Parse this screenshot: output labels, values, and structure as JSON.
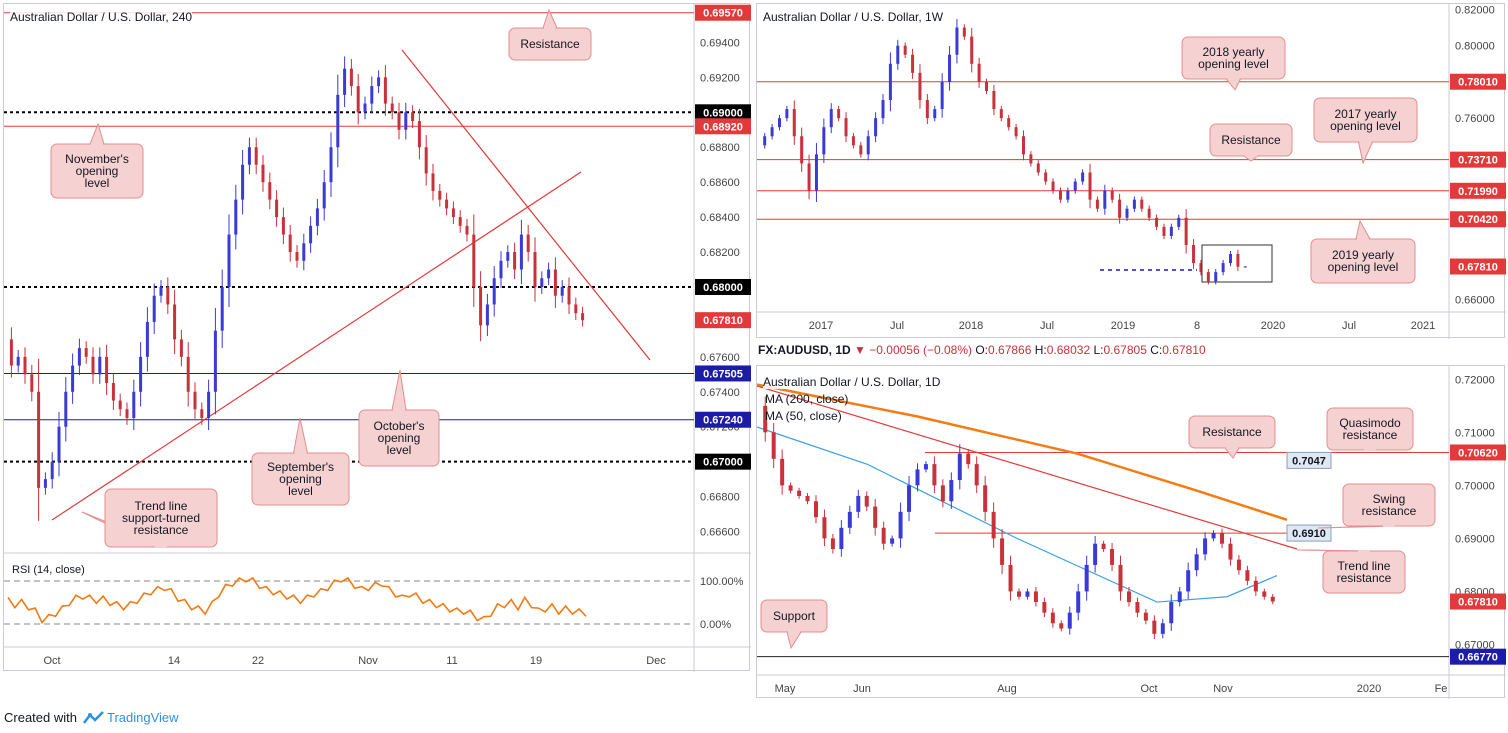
{
  "footer": {
    "created_with": "Created with",
    "brand": "TradingView",
    "logo_icon": "tradingview-logo-icon"
  },
  "colors": {
    "up": "#3a3ad6",
    "down": "#c8323a",
    "line_red": "#e23a3a",
    "level_blue": "#1c1ca8",
    "annot_fill": "#f6d1d1",
    "annot_stroke": "#e58d8d",
    "rsi": "#f37a14",
    "ma200": "#f57c14",
    "ma50": "#3ba0e6",
    "price_tag": "#e23a3a"
  },
  "panel1": {
    "title": "Australian Dollar / U.S. Dollar, 240",
    "y_ticks": [
      "0.69400",
      "0.69200",
      "0.68800",
      "0.68600",
      "0.68400",
      "0.68200",
      "0.67600",
      "0.67400",
      "0.67200",
      "0.66800",
      "0.66600"
    ],
    "x_ticks": [
      "Oct",
      "14",
      "22",
      "Nov",
      "11",
      "19",
      "Dec"
    ],
    "tags": [
      {
        "label": "0.69570",
        "kind": "red"
      },
      {
        "label": "0.69000",
        "kind": "black"
      },
      {
        "label": "0.68920",
        "kind": "red"
      },
      {
        "label": "0.68000",
        "kind": "black"
      },
      {
        "label": "0.67810",
        "kind": "red"
      },
      {
        "label": "0.67505",
        "kind": "blue"
      },
      {
        "label": "0.67240",
        "kind": "blue"
      },
      {
        "label": "0.67000",
        "kind": "black"
      }
    ],
    "annotations": [
      {
        "text": "Resistance"
      },
      {
        "text": "November's\nopening\nlevel"
      },
      {
        "text": "September's\nopening\nlevel"
      },
      {
        "text": "October's\nopening\nlevel"
      },
      {
        "text": "Trend line\nsupport-turned\nresistance"
      }
    ],
    "rsi_label": "RSI (14, close)",
    "rsi_ticks": [
      "100.00%",
      "0.00%"
    ]
  },
  "panel2": {
    "title": "Australian Dollar / U.S. Dollar, 1W",
    "y_ticks": [
      "0.82000",
      "0.80000",
      "0.76000",
      "0.66000"
    ],
    "x_ticks": [
      "2017",
      "Jul",
      "2018",
      "Jul",
      "2019",
      "8",
      "2020",
      "Jul",
      "2021"
    ],
    "tags": [
      {
        "label": "0.78010",
        "kind": "red"
      },
      {
        "label": "0.73710",
        "kind": "red"
      },
      {
        "label": "0.71990",
        "kind": "red"
      },
      {
        "label": "0.70420",
        "kind": "red"
      },
      {
        "label": "0.67810",
        "kind": "red"
      }
    ],
    "annotations": [
      {
        "text": "2018 yearly\nopening level"
      },
      {
        "text": "2017 yearly\nopening level"
      },
      {
        "text": "Resistance"
      },
      {
        "text": "2019 yearly\nopening level"
      }
    ]
  },
  "panel3": {
    "ohlc": {
      "symbol": "FX:AUDUSD, 1D",
      "change": "−0.00056 (−0.08%)",
      "o_label": "O:",
      "o": "0.67866",
      "h_label": "H:",
      "h": "0.68032",
      "l_label": "L:",
      "l": "0.67805",
      "c_label": "C:",
      "c": "0.67810"
    },
    "title": "Australian Dollar / U.S. Dollar, 1D",
    "ma200": "MA (200, close)",
    "ma50": "MA (50, close)",
    "y_ticks": [
      "0.72000",
      "0.71000",
      "0.70000",
      "0.69000",
      "0.68000",
      "0.67000"
    ],
    "x_ticks": [
      "May",
      "Jun",
      "Aug",
      "Oct",
      "Nov",
      "2020",
      "Fe"
    ],
    "tags": [
      {
        "label": "0.70620",
        "kind": "red"
      },
      {
        "label": "0.67810",
        "kind": "red"
      },
      {
        "label": "0.66770",
        "kind": "blue"
      }
    ],
    "grey_tags": [
      "0.7047",
      "0.6910"
    ],
    "annotations": [
      {
        "text": "Resistance"
      },
      {
        "text": "Quasimodo\nresistance"
      },
      {
        "text": "Swing\nresistance"
      },
      {
        "text": "Trend line\nresistance"
      },
      {
        "text": "Support"
      }
    ]
  },
  "chart_data": [
    {
      "type": "candlestick",
      "title": "Australian Dollar / U.S. Dollar, 240",
      "ylim": [
        0.665,
        0.6962
      ],
      "levels": [
        0.6957,
        0.69,
        0.6892,
        0.68,
        0.6781,
        0.67505,
        0.6724,
        0.67
      ],
      "path": [
        0.677,
        0.6755,
        0.676,
        0.675,
        0.674,
        0.6685,
        0.669,
        0.67,
        0.672,
        0.674,
        0.6755,
        0.6765,
        0.676,
        0.675,
        0.676,
        0.6745,
        0.6735,
        0.673,
        0.6725,
        0.674,
        0.676,
        0.678,
        0.6795,
        0.68,
        0.679,
        0.677,
        0.676,
        0.674,
        0.673,
        0.6725,
        0.674,
        0.6775,
        0.68,
        0.683,
        0.685,
        0.687,
        0.688,
        0.687,
        0.686,
        0.685,
        0.684,
        0.683,
        0.682,
        0.6815,
        0.6825,
        0.6835,
        0.6845,
        0.686,
        0.688,
        0.691,
        0.6925,
        0.6915,
        0.69,
        0.6905,
        0.6915,
        0.692,
        0.6905,
        0.69,
        0.689,
        0.69,
        0.6895,
        0.688,
        0.6865,
        0.6855,
        0.685,
        0.6845,
        0.684,
        0.6835,
        0.683,
        0.68,
        0.6778,
        0.679,
        0.6805,
        0.6815,
        0.682,
        0.681,
        0.683,
        0.682,
        0.68,
        0.6805,
        0.681,
        0.6795,
        0.68,
        0.679,
        0.6785,
        0.6781
      ],
      "rsi": [
        55,
        45,
        50,
        40,
        30,
        10,
        15,
        25,
        35,
        50,
        60,
        65,
        60,
        55,
        58,
        50,
        45,
        40,
        45,
        55,
        65,
        75,
        80,
        85,
        75,
        60,
        50,
        40,
        35,
        30,
        45,
        70,
        85,
        95,
        100,
        105,
        100,
        90,
        80,
        75,
        70,
        65,
        60,
        55,
        60,
        70,
        75,
        85,
        95,
        105,
        100,
        90,
        80,
        85,
        90,
        95,
        80,
        70,
        60,
        70,
        65,
        55,
        50,
        45,
        40,
        35,
        30,
        30,
        25,
        15,
        10,
        25,
        40,
        45,
        50,
        40,
        55,
        45,
        30,
        35,
        40,
        30,
        35,
        30,
        28,
        25
      ]
    },
    {
      "type": "candlestick",
      "title": "Australian Dollar / U.S. Dollar, 1W",
      "ylim": [
        0.653,
        0.823
      ],
      "levels": [
        0.7801,
        0.7371,
        0.7199,
        0.7042,
        0.6781
      ],
      "path": [
        0.745,
        0.75,
        0.755,
        0.76,
        0.765,
        0.75,
        0.735,
        0.72,
        0.74,
        0.755,
        0.765,
        0.76,
        0.75,
        0.745,
        0.74,
        0.75,
        0.76,
        0.77,
        0.79,
        0.8,
        0.795,
        0.785,
        0.77,
        0.76,
        0.765,
        0.78,
        0.795,
        0.81,
        0.805,
        0.79,
        0.78,
        0.775,
        0.765,
        0.76,
        0.755,
        0.75,
        0.74,
        0.735,
        0.73,
        0.725,
        0.72,
        0.715,
        0.72,
        0.725,
        0.73,
        0.715,
        0.71,
        0.72,
        0.715,
        0.705,
        0.71,
        0.715,
        0.71,
        0.705,
        0.7,
        0.695,
        0.7,
        0.705,
        0.69,
        0.68,
        0.675,
        0.67,
        0.675,
        0.68,
        0.685,
        0.678,
        0.6781
      ]
    },
    {
      "type": "candlestick",
      "title": "Australian Dollar / U.S. Dollar, 1D",
      "ylim": [
        0.665,
        0.7225
      ],
      "levels": [
        0.7062,
        0.6781,
        0.6677
      ],
      "path": [
        0.715,
        0.71,
        0.705,
        0.7,
        0.699,
        0.698,
        0.697,
        0.694,
        0.69,
        0.688,
        0.692,
        0.695,
        0.698,
        0.696,
        0.692,
        0.689,
        0.69,
        0.695,
        0.7,
        0.703,
        0.704,
        0.7,
        0.697,
        0.701,
        0.706,
        0.704,
        0.7,
        0.695,
        0.69,
        0.685,
        0.68,
        0.679,
        0.68,
        0.678,
        0.676,
        0.674,
        0.673,
        0.676,
        0.68,
        0.685,
        0.689,
        0.688,
        0.685,
        0.68,
        0.678,
        0.676,
        0.6745,
        0.672,
        0.674,
        0.678,
        0.68,
        0.684,
        0.687,
        0.69,
        0.691,
        0.689,
        0.686,
        0.684,
        0.682,
        0.68,
        0.679,
        0.6781
      ],
      "ma200": [
        0.719,
        0.713,
        0.706,
        0.699,
        0.6935
      ],
      "ma50": [
        0.711,
        0.704,
        0.69,
        0.678,
        0.679,
        0.683
      ],
      "swing_resistance": 0.691,
      "quasimodo_resistance": 0.7047
    }
  ]
}
